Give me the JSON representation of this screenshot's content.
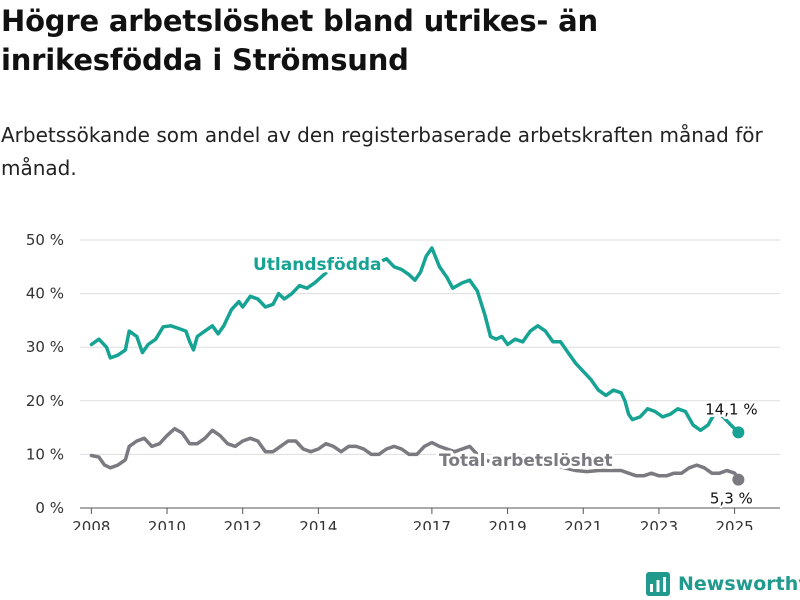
{
  "title": "Högre arbetslöshet bland utrikes- än inrikesfödda i Strömsund",
  "subtitle": "Arbetssökande som andel av den registerbaserade arbetskraften månad för månad.",
  "logo_text": "Newsworthy",
  "colors": {
    "foreign": "#16a393",
    "total": "#7a7a80",
    "grid": "#dddddd",
    "axis": "#999999",
    "brand": "#1f9a8c"
  },
  "chart_data": {
    "type": "line",
    "ylim": [
      0,
      50
    ],
    "yticks": [
      0,
      10,
      20,
      30,
      40,
      50
    ],
    "ytick_labels": [
      "0 %",
      "10 %",
      "20 %",
      "30 %",
      "40 %",
      "50 %"
    ],
    "xlim": [
      2007.7,
      2026.2
    ],
    "xticks": [
      2008,
      2010,
      2012,
      2014,
      2017,
      2019,
      2021,
      2023,
      2025
    ],
    "xtick_labels": [
      "2008",
      "2010",
      "2012",
      "2014",
      "2017",
      "2019",
      "2021",
      "2023",
      "2025"
    ],
    "series": [
      {
        "name": "Utlandsfödda",
        "color": "#16a393",
        "end_label": "14,1 %",
        "points": [
          [
            2008.0,
            30.5
          ],
          [
            2008.2,
            31.5
          ],
          [
            2008.4,
            30.0
          ],
          [
            2008.5,
            28.0
          ],
          [
            2008.7,
            28.5
          ],
          [
            2008.9,
            29.5
          ],
          [
            2009.0,
            33.0
          ],
          [
            2009.2,
            32.0
          ],
          [
            2009.35,
            29.0
          ],
          [
            2009.5,
            30.5
          ],
          [
            2009.7,
            31.5
          ],
          [
            2009.9,
            33.8
          ],
          [
            2010.1,
            34.0
          ],
          [
            2010.3,
            33.5
          ],
          [
            2010.5,
            33.0
          ],
          [
            2010.6,
            31.0
          ],
          [
            2010.7,
            29.5
          ],
          [
            2010.8,
            32.0
          ],
          [
            2011.0,
            33.0
          ],
          [
            2011.2,
            34.0
          ],
          [
            2011.35,
            32.5
          ],
          [
            2011.5,
            34.0
          ],
          [
            2011.7,
            37.0
          ],
          [
            2011.9,
            38.5
          ],
          [
            2012.0,
            37.5
          ],
          [
            2012.2,
            39.5
          ],
          [
            2012.4,
            39.0
          ],
          [
            2012.6,
            37.5
          ],
          [
            2012.8,
            38.0
          ],
          [
            2012.95,
            40.0
          ],
          [
            2013.1,
            39.0
          ],
          [
            2013.3,
            40.0
          ],
          [
            2013.5,
            41.5
          ],
          [
            2013.7,
            41.0
          ],
          [
            2013.9,
            42.0
          ],
          [
            2014.3,
            44.5
          ],
          [
            2014.6,
            45.0
          ],
          [
            2014.9,
            46.0
          ],
          [
            2015.2,
            45.8
          ],
          [
            2015.5,
            45.5
          ],
          [
            2015.8,
            46.5
          ],
          [
            2016.0,
            45.0
          ],
          [
            2016.2,
            44.5
          ],
          [
            2016.4,
            43.5
          ],
          [
            2016.55,
            42.5
          ],
          [
            2016.7,
            44.0
          ],
          [
            2016.85,
            47.0
          ],
          [
            2017.0,
            48.5
          ],
          [
            2017.2,
            45.0
          ],
          [
            2017.4,
            43.0
          ],
          [
            2017.55,
            41.0
          ],
          [
            2017.8,
            42.0
          ],
          [
            2018.0,
            42.5
          ],
          [
            2018.2,
            40.5
          ],
          [
            2018.4,
            36.0
          ],
          [
            2018.55,
            32.0
          ],
          [
            2018.7,
            31.5
          ],
          [
            2018.85,
            32.0
          ],
          [
            2019.0,
            30.5
          ],
          [
            2019.2,
            31.5
          ],
          [
            2019.4,
            31.0
          ],
          [
            2019.6,
            33.0
          ],
          [
            2019.8,
            34.0
          ],
          [
            2020.0,
            33.0
          ],
          [
            2020.2,
            31.0
          ],
          [
            2020.4,
            31.0
          ],
          [
            2020.6,
            29.0
          ],
          [
            2020.8,
            27.0
          ],
          [
            2021.0,
            25.5
          ],
          [
            2021.2,
            24.0
          ],
          [
            2021.4,
            22.0
          ],
          [
            2021.6,
            21.0
          ],
          [
            2021.8,
            22.0
          ],
          [
            2022.0,
            21.5
          ],
          [
            2022.1,
            20.0
          ],
          [
            2022.2,
            17.5
          ],
          [
            2022.3,
            16.5
          ],
          [
            2022.5,
            17.0
          ],
          [
            2022.7,
            18.5
          ],
          [
            2022.9,
            18.0
          ],
          [
            2023.1,
            17.0
          ],
          [
            2023.3,
            17.5
          ],
          [
            2023.5,
            18.5
          ],
          [
            2023.7,
            18.0
          ],
          [
            2023.9,
            15.5
          ],
          [
            2024.1,
            14.5
          ],
          [
            2024.3,
            15.5
          ],
          [
            2024.5,
            18.0
          ],
          [
            2024.7,
            17.0
          ],
          [
            2024.9,
            15.5
          ],
          [
            2025.1,
            14.1
          ]
        ]
      },
      {
        "name": "Total arbetslöshet",
        "color": "#7a7a80",
        "end_label": "5,3 %",
        "points": [
          [
            2008.0,
            9.8
          ],
          [
            2008.2,
            9.5
          ],
          [
            2008.35,
            8.0
          ],
          [
            2008.5,
            7.5
          ],
          [
            2008.7,
            8.0
          ],
          [
            2008.9,
            9.0
          ],
          [
            2009.0,
            11.5
          ],
          [
            2009.2,
            12.5
          ],
          [
            2009.4,
            13.0
          ],
          [
            2009.6,
            11.5
          ],
          [
            2009.8,
            12.0
          ],
          [
            2010.0,
            13.5
          ],
          [
            2010.2,
            14.8
          ],
          [
            2010.4,
            14.0
          ],
          [
            2010.6,
            12.0
          ],
          [
            2010.8,
            12.0
          ],
          [
            2011.0,
            13.0
          ],
          [
            2011.2,
            14.5
          ],
          [
            2011.4,
            13.5
          ],
          [
            2011.6,
            12.0
          ],
          [
            2011.8,
            11.5
          ],
          [
            2012.0,
            12.5
          ],
          [
            2012.2,
            13.0
          ],
          [
            2012.4,
            12.5
          ],
          [
            2012.6,
            10.5
          ],
          [
            2012.8,
            10.5
          ],
          [
            2013.0,
            11.5
          ],
          [
            2013.2,
            12.5
          ],
          [
            2013.4,
            12.5
          ],
          [
            2013.6,
            11.0
          ],
          [
            2013.8,
            10.5
          ],
          [
            2014.0,
            11.0
          ],
          [
            2014.2,
            12.0
          ],
          [
            2014.4,
            11.5
          ],
          [
            2014.6,
            10.5
          ],
          [
            2014.8,
            11.5
          ],
          [
            2015.0,
            11.5
          ],
          [
            2015.2,
            11.0
          ],
          [
            2015.4,
            10.0
          ],
          [
            2015.6,
            10.0
          ],
          [
            2015.8,
            11.0
          ],
          [
            2016.0,
            11.5
          ],
          [
            2016.2,
            11.0
          ],
          [
            2016.4,
            10.0
          ],
          [
            2016.6,
            10.0
          ],
          [
            2016.8,
            11.5
          ],
          [
            2017.0,
            12.2
          ],
          [
            2017.2,
            11.5
          ],
          [
            2017.4,
            11.0
          ],
          [
            2017.6,
            10.5
          ],
          [
            2017.8,
            11.0
          ],
          [
            2018.0,
            11.5
          ],
          [
            2018.2,
            10.0
          ],
          [
            2018.4,
            9.0
          ],
          [
            2018.6,
            8.5
          ],
          [
            2018.8,
            8.5
          ],
          [
            2019.0,
            8.0
          ],
          [
            2019.3,
            8.0
          ],
          [
            2019.6,
            8.5
          ],
          [
            2019.9,
            8.5
          ],
          [
            2020.2,
            8.0
          ],
          [
            2020.5,
            7.5
          ],
          [
            2020.8,
            7.0
          ],
          [
            2021.1,
            6.8
          ],
          [
            2021.4,
            7.0
          ],
          [
            2021.7,
            7.0
          ],
          [
            2022.0,
            7.0
          ],
          [
            2022.2,
            6.5
          ],
          [
            2022.4,
            6.0
          ],
          [
            2022.6,
            6.0
          ],
          [
            2022.8,
            6.5
          ],
          [
            2023.0,
            6.0
          ],
          [
            2023.2,
            6.0
          ],
          [
            2023.4,
            6.5
          ],
          [
            2023.6,
            6.5
          ],
          [
            2023.8,
            7.5
          ],
          [
            2024.0,
            8.0
          ],
          [
            2024.2,
            7.5
          ],
          [
            2024.4,
            6.5
          ],
          [
            2024.6,
            6.5
          ],
          [
            2024.8,
            7.0
          ],
          [
            2025.0,
            6.5
          ],
          [
            2025.1,
            5.3
          ]
        ]
      }
    ]
  }
}
